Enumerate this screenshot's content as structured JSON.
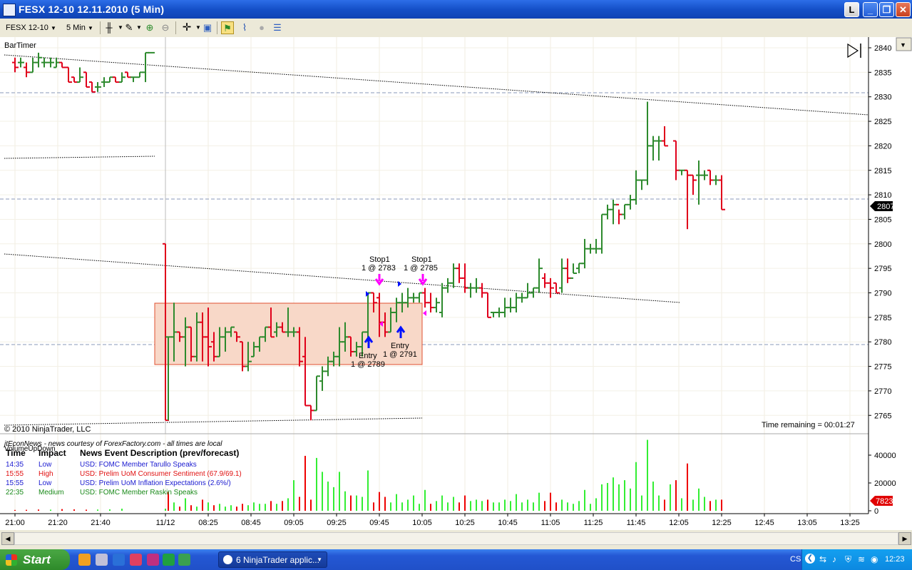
{
  "window": {
    "title": "FESX 12-10  12.11.2010 (5 Min)",
    "btn_l": "L",
    "btn_min": "_",
    "btn_max": "❐",
    "btn_close": "✕"
  },
  "toolbar": {
    "instrument": "FESX 12-10",
    "interval": "5 Min",
    "icons": [
      "bar-type-icon",
      "drawing-pencil-icon",
      "zoom-in-icon",
      "zoom-out-icon",
      "crosshair-icon",
      "data-box-icon",
      "strategy-icon",
      "indicators-icon",
      "disabled-circle-icon",
      "properties-icon"
    ]
  },
  "chart": {
    "indicator_label": "BarTimer",
    "copyright": "© 2010 NinjaTrader, LLC",
    "time_remaining": "Time remaining = 00:01:27",
    "current_price_tag": "2807",
    "volume_tag": "7823",
    "volume_indicator_label": "VolumeUpDown",
    "price_axis": [
      "2840",
      "2835",
      "2830",
      "2825",
      "2820",
      "2815",
      "2810",
      "2805",
      "2800",
      "2795",
      "2790",
      "2785",
      "2780",
      "2775",
      "2770",
      "2765"
    ],
    "volume_axis": [
      "40000",
      "20000",
      "0"
    ],
    "time_axis": [
      "21:00",
      "21:20",
      "21:40",
      "11/12",
      "08:25",
      "08:45",
      "09:05",
      "09:25",
      "09:45",
      "10:05",
      "10:25",
      "10:45",
      "11:05",
      "11:25",
      "11:45",
      "12:05",
      "12:25",
      "12:45",
      "13:05",
      "13:25"
    ],
    "markers": {
      "stop1_a_title": "Stop1",
      "stop1_a_detail": "1 @ 2783",
      "stop1_b_title": "Stop1",
      "stop1_b_detail": "1 @ 2785",
      "entry_a_title": "Entry",
      "entry_a_detail": "1 @ 2789",
      "entry_b_title": "Entry",
      "entry_b_detail": "1 @ 2791"
    },
    "colors": {
      "up_bar": "#2d8a2d",
      "down_bar": "#e0001a",
      "vol_up": "#33ee33",
      "vol_down": "#ee0000",
      "box_fill": "#f8d8c8",
      "box_border": "#e05030"
    }
  },
  "news": {
    "source": "jtEconNews - news courtesy of ForexFactory.com - all times are local",
    "col_time": "Time",
    "col_impact": "Impact",
    "col_desc": "News Event Description (prev/forecast)",
    "rows": [
      {
        "time": "14:35",
        "impact": "Low",
        "desc": "USD: FOMC Member Tarullo Speaks",
        "color": "#1a1ad0"
      },
      {
        "time": "15:55",
        "impact": "High",
        "desc": "USD: Prelim UoM Consumer Sentiment (67.9/69.1)",
        "color": "#e01010"
      },
      {
        "time": "15:55",
        "impact": "Low",
        "desc": "USD: Prelim UoM Inflation Expectations (2.6%/)",
        "color": "#1a1ad0"
      },
      {
        "time": "22:35",
        "impact": "Medium",
        "desc": "USD: FOMC Member Raskin Speaks",
        "color": "#1a8a1a"
      }
    ]
  },
  "taskbar": {
    "start": "Start",
    "task": "6 NinjaTrader applic...",
    "lang": "CS",
    "clock": "12:23"
  }
}
